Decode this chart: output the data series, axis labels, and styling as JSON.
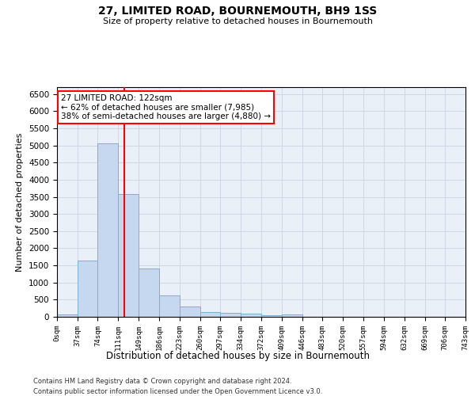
{
  "title": "27, LIMITED ROAD, BOURNEMOUTH, BH9 1SS",
  "subtitle": "Size of property relative to detached houses in Bournemouth",
  "xlabel": "Distribution of detached houses by size in Bournemouth",
  "ylabel": "Number of detached properties",
  "footnote1": "Contains HM Land Registry data © Crown copyright and database right 2024.",
  "footnote2": "Contains public sector information licensed under the Open Government Licence v3.0.",
  "bar_color": "#c5d8f0",
  "bar_edge_color": "#7aafd4",
  "annotation_line1": "27 LIMITED ROAD: 122sqm",
  "annotation_line2": "← 62% of detached houses are smaller (7,985)",
  "annotation_line3": "38% of semi-detached houses are larger (4,880) →",
  "annotation_box_color": "white",
  "annotation_box_edge_color": "red",
  "vline_x": 122,
  "vline_color": "red",
  "bin_edges": [
    0,
    37,
    74,
    111,
    149,
    186,
    223,
    260,
    297,
    334,
    372,
    409,
    446,
    483,
    520,
    557,
    594,
    632,
    669,
    706,
    743
  ],
  "bar_heights": [
    75,
    1650,
    5060,
    3590,
    1410,
    620,
    290,
    140,
    110,
    85,
    50,
    80,
    0,
    0,
    0,
    0,
    0,
    0,
    0,
    0
  ],
  "ylim": [
    0,
    6700
  ],
  "xlim": [
    0,
    743
  ],
  "yticks": [
    0,
    500,
    1000,
    1500,
    2000,
    2500,
    3000,
    3500,
    4000,
    4500,
    5000,
    5500,
    6000,
    6500
  ],
  "xtick_labels": [
    "0sqm",
    "37sqm",
    "74sqm",
    "111sqm",
    "149sqm",
    "186sqm",
    "223sqm",
    "260sqm",
    "297sqm",
    "334sqm",
    "372sqm",
    "409sqm",
    "446sqm",
    "483sqm",
    "520sqm",
    "557sqm",
    "594sqm",
    "632sqm",
    "669sqm",
    "706sqm",
    "743sqm"
  ],
  "grid_color": "#d0d8e8",
  "background_color": "#eaf0f8"
}
